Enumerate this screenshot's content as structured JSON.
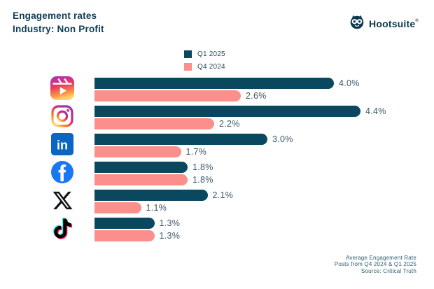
{
  "header": {
    "title": "Engagement rates",
    "subtitle": "Industry: Non Profit",
    "brand": "Hootsuite",
    "brand_mark": "®"
  },
  "legend": [
    {
      "label": "Q1 2025",
      "color": "#09485F"
    },
    {
      "label": "Q4 2024",
      "color": "#FC8F8B"
    }
  ],
  "chart_data": {
    "type": "bar",
    "orientation": "horizontal",
    "title": "Engagement rates — Industry: Non Profit",
    "categories": [
      "Instagram Reels",
      "Instagram",
      "LinkedIn",
      "Facebook",
      "X",
      "TikTok"
    ],
    "icons": [
      "instagram-reels-icon",
      "instagram-icon",
      "linkedin-icon",
      "facebook-icon",
      "x-icon",
      "tiktok-icon"
    ],
    "series": [
      {
        "name": "Q1 2025",
        "color": "#09485F",
        "values": [
          4.0,
          4.4,
          3.0,
          1.8,
          2.1,
          1.3
        ]
      },
      {
        "name": "Q4 2024",
        "color": "#FC8F8B",
        "values": [
          2.6,
          2.2,
          1.7,
          1.8,
          1.1,
          1.3
        ]
      }
    ],
    "value_suffix": "%",
    "xlim": [
      0,
      4.4
    ],
    "legend_position": "top-center",
    "grid": false
  },
  "footer": {
    "lines": [
      "Average Engagement Rate",
      "Posts from Q4 2024 & Q1 2025",
      "Source: Critical Truth"
    ]
  }
}
